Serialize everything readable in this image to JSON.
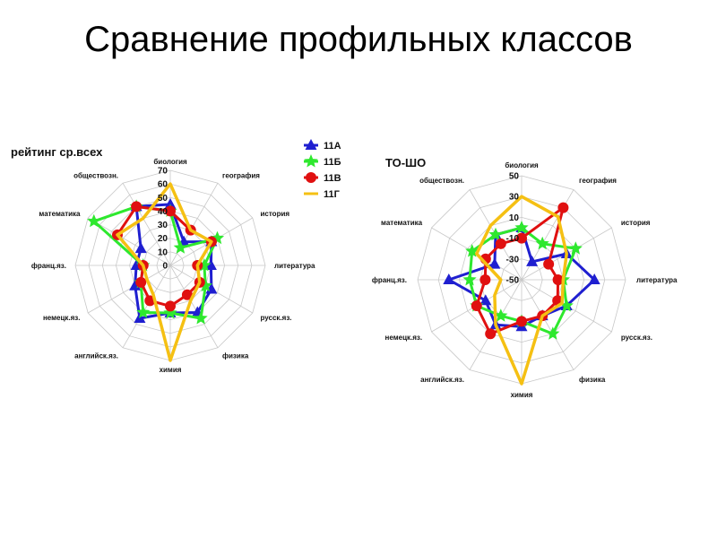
{
  "slide": {
    "title": "Сравнение профильных классов"
  },
  "chart_data": [
    {
      "type": "radar",
      "title": "рейтинг ср.всех",
      "axes": [
        "биология",
        "география",
        "история",
        "литература",
        "русск.яз.",
        "физика",
        "химия",
        "английск.яз.",
        "немецк.яз.",
        "франц.яз.",
        "математика",
        "обществозн."
      ],
      "r_ticks": [
        0,
        10,
        20,
        30,
        40,
        50,
        60,
        70
      ],
      "rlim": [
        0,
        70
      ],
      "legend_position": "top-right",
      "series": [
        {
          "name": "11А",
          "color": "#1f1fd0",
          "marker": "triangle",
          "values": [
            45,
            20,
            35,
            30,
            35,
            40,
            35,
            45,
            30,
            25,
            25,
            50
          ]
        },
        {
          "name": "11Б",
          "color": "#2ee82e",
          "marker": "star",
          "values": [
            40,
            15,
            40,
            25,
            30,
            45,
            35,
            40,
            25,
            20,
            65,
            50
          ]
        },
        {
          "name": "11В",
          "color": "#e01010",
          "marker": "circle",
          "values": [
            40,
            30,
            35,
            20,
            25,
            25,
            30,
            30,
            25,
            20,
            45,
            50
          ]
        },
        {
          "name": "11Г",
          "color": "#f5c013",
          "marker": "line",
          "values": [
            60,
            30,
            35,
            20,
            25,
            30,
            70,
            25,
            20,
            20,
            45,
            40
          ]
        }
      ]
    },
    {
      "type": "radar",
      "title": "ТО-ШО",
      "axes": [
        "биология",
        "география",
        "история",
        "литература",
        "русск.яз.",
        "физика",
        "химия",
        "английск.яз.",
        "немецк.яз.",
        "франц.яз.",
        "математика",
        "обществозн."
      ],
      "r_ticks": [
        -50,
        -30,
        -10,
        10,
        30,
        50
      ],
      "r_tick_labels": [
        "-50",
        "-30",
        "-10",
        "10",
        "30",
        "50"
      ],
      "rlim": [
        -50,
        50
      ],
      "series": [
        {
          "name": "11А",
          "color": "#1f1fd0",
          "marker": "triangle",
          "values": [
            0,
            -30,
            0,
            20,
            0,
            -10,
            -5,
            0,
            -10,
            20,
            -20,
            0
          ]
        },
        {
          "name": "11Б",
          "color": "#2ee82e",
          "marker": "star",
          "values": [
            0,
            -10,
            10,
            -10,
            0,
            10,
            -10,
            -10,
            0,
            0,
            5,
            0
          ]
        },
        {
          "name": "11В",
          "color": "#e01010",
          "marker": "circle",
          "values": [
            -10,
            30,
            -20,
            -15,
            -10,
            -10,
            -10,
            10,
            0,
            -15,
            -10,
            -10
          ]
        },
        {
          "name": "11Г",
          "color": "#f5c013",
          "marker": "line",
          "values": [
            30,
            20,
            0,
            -10,
            -5,
            -10,
            50,
            0,
            -20,
            -30,
            0,
            10
          ]
        }
      ]
    }
  ]
}
